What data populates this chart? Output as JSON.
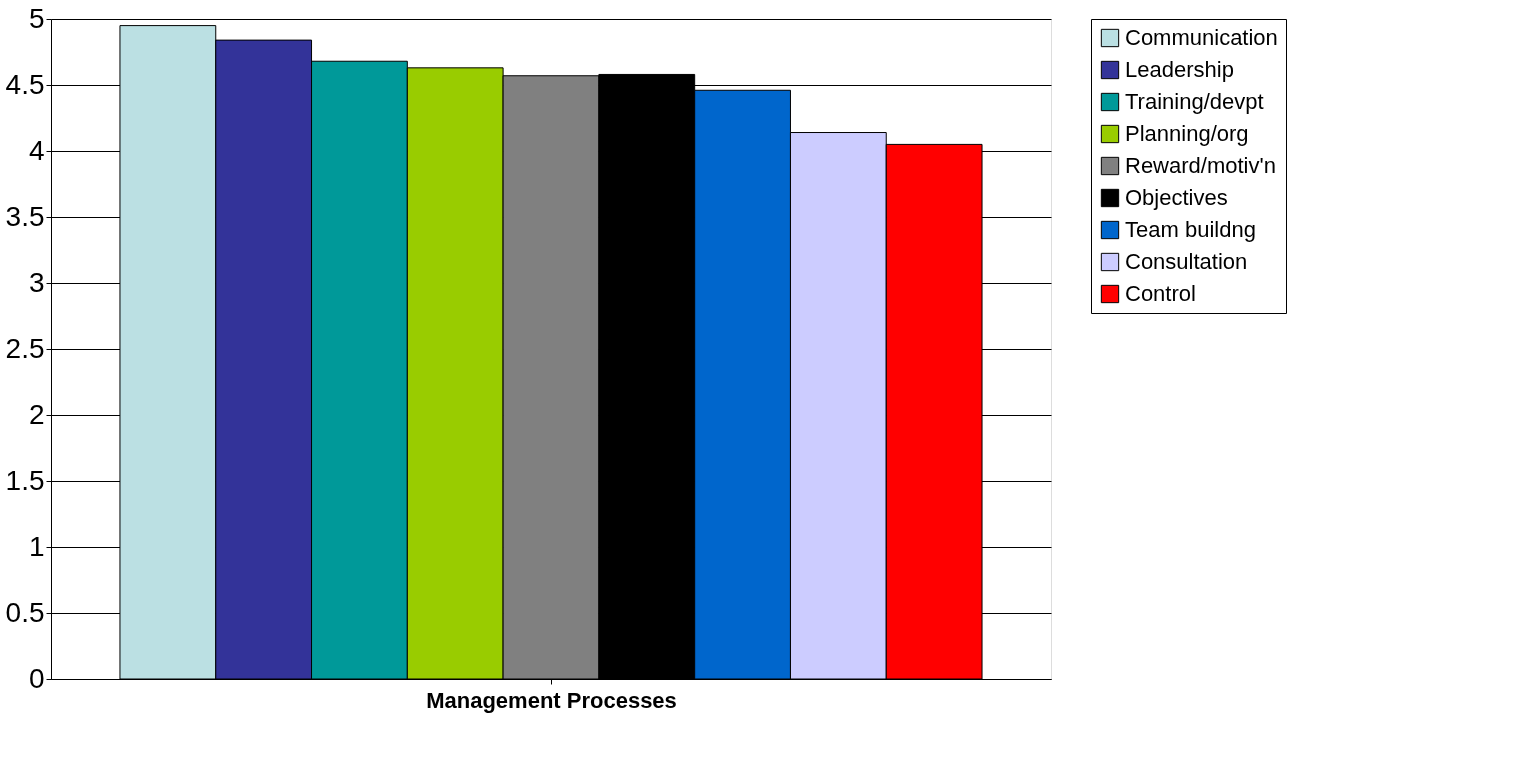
{
  "chart_data": {
    "type": "bar",
    "xlabel": "Management Processes",
    "categories": [
      null
    ],
    "series": [
      {
        "name": "Communication",
        "color": "#bbe0e3",
        "values": [
          4.95
        ]
      },
      {
        "name": "Leadership",
        "color": "#333399",
        "values": [
          4.84
        ]
      },
      {
        "name": "Training/devpt",
        "color": "#009999",
        "values": [
          4.68
        ]
      },
      {
        "name": "Planning/org",
        "color": "#99cc00",
        "values": [
          4.63
        ]
      },
      {
        "name": "Reward/motiv'n",
        "color": "#808080",
        "values": [
          4.57
        ]
      },
      {
        "name": "Objectives",
        "color": "#000000",
        "values": [
          4.58
        ]
      },
      {
        "name": "Team buildng",
        "color": "#0066cc",
        "values": [
          4.46
        ]
      },
      {
        "name": "Consultation",
        "color": "#ccccff",
        "values": [
          4.14
        ]
      },
      {
        "name": "Control",
        "color": "#ff0000",
        "values": [
          4.05
        ]
      }
    ],
    "ylim": [
      0,
      5
    ],
    "yticks": [
      0,
      0.5,
      1,
      1.5,
      2,
      2.5,
      3,
      3.5,
      4,
      4.5,
      5
    ],
    "grid": "y",
    "legend": "right"
  }
}
